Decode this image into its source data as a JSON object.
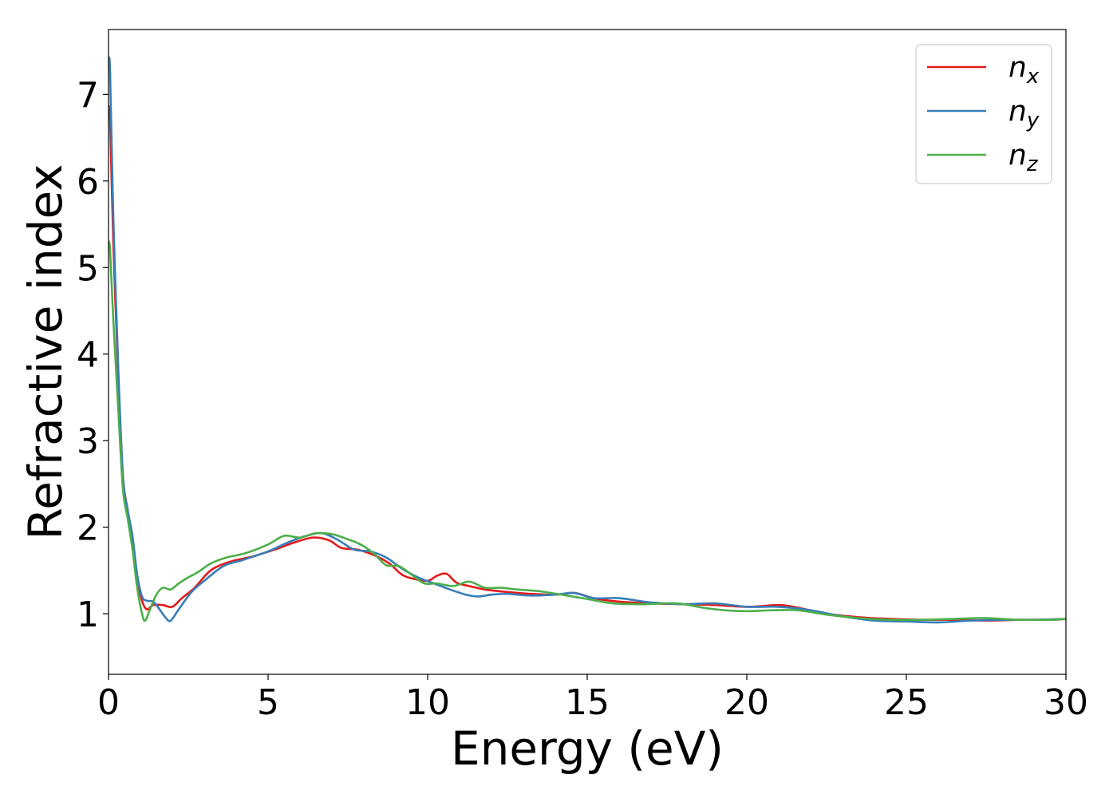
{
  "chart_data": {
    "type": "line",
    "xlabel": "Energy (eV)",
    "ylabel": "Refractive index",
    "xlim": [
      0,
      30
    ],
    "ylim": [
      0.3,
      7.75
    ],
    "xticks": [
      0,
      5,
      10,
      15,
      20,
      25,
      30
    ],
    "yticks": [
      1,
      2,
      3,
      4,
      5,
      6,
      7
    ],
    "grid": false,
    "legend_position": "top-right",
    "series": [
      {
        "name": "n_x",
        "label_main": "n",
        "label_sub": "x",
        "color": "#e41a1c",
        "x": [
          0,
          0.05,
          0.15,
          0.3,
          0.45,
          0.6,
          0.75,
          0.9,
          1.05,
          1.2,
          1.4,
          1.7,
          2.0,
          2.3,
          2.7,
          3.2,
          3.8,
          4.5,
          5.2,
          5.8,
          6.4,
          6.9,
          7.3,
          7.8,
          8.3,
          8.8,
          9.2,
          9.6,
          10.0,
          10.3,
          10.6,
          10.9,
          11.3,
          11.8,
          12.5,
          13.2,
          14.0,
          14.6,
          15.2,
          16.0,
          17.0,
          18.0,
          19.0,
          20.0,
          21.0,
          21.6,
          22.5,
          23.5,
          24.5,
          25.5,
          26.5,
          27.5,
          28.5,
          29.5,
          30
        ],
        "y": [
          6.85,
          6.7,
          5.3,
          3.8,
          2.6,
          2.2,
          1.85,
          1.4,
          1.15,
          1.05,
          1.1,
          1.1,
          1.08,
          1.18,
          1.3,
          1.5,
          1.6,
          1.66,
          1.74,
          1.82,
          1.88,
          1.85,
          1.76,
          1.74,
          1.68,
          1.58,
          1.45,
          1.4,
          1.38,
          1.44,
          1.46,
          1.36,
          1.32,
          1.28,
          1.25,
          1.23,
          1.22,
          1.24,
          1.18,
          1.14,
          1.12,
          1.11,
          1.1,
          1.08,
          1.1,
          1.07,
          1.0,
          0.96,
          0.94,
          0.93,
          0.93,
          0.92,
          0.93,
          0.93,
          0.94
        ]
      },
      {
        "name": "n_y",
        "label_main": "n",
        "label_sub": "y",
        "color": "#377eb8",
        "x": [
          0,
          0.05,
          0.15,
          0.3,
          0.45,
          0.6,
          0.75,
          0.9,
          1.05,
          1.2,
          1.4,
          1.6,
          1.8,
          1.95,
          2.2,
          2.6,
          3.0,
          3.6,
          4.2,
          5.0,
          5.6,
          6.2,
          6.7,
          7.2,
          7.7,
          8.2,
          8.7,
          9.2,
          9.7,
          10.2,
          10.7,
          11.2,
          11.6,
          12.0,
          12.5,
          13.2,
          14.0,
          14.6,
          15.2,
          16.0,
          17.0,
          18.0,
          19.0,
          20.0,
          21.0,
          22.0,
          23.0,
          24.0,
          25.0,
          26.0,
          27.0,
          28.0,
          29.0,
          30
        ],
        "y": [
          7.4,
          7.25,
          5.6,
          3.9,
          2.6,
          2.2,
          1.9,
          1.45,
          1.2,
          1.15,
          1.14,
          1.05,
          0.95,
          0.92,
          1.05,
          1.25,
          1.38,
          1.55,
          1.62,
          1.72,
          1.82,
          1.9,
          1.93,
          1.85,
          1.74,
          1.72,
          1.65,
          1.52,
          1.42,
          1.35,
          1.28,
          1.22,
          1.2,
          1.22,
          1.23,
          1.21,
          1.22,
          1.24,
          1.18,
          1.18,
          1.13,
          1.11,
          1.12,
          1.08,
          1.08,
          1.04,
          0.97,
          0.92,
          0.91,
          0.9,
          0.92,
          0.93,
          0.93,
          0.94
        ]
      },
      {
        "name": "n_z",
        "label_main": "n",
        "label_sub": "z",
        "color": "#4daf4a",
        "x": [
          0,
          0.05,
          0.15,
          0.3,
          0.45,
          0.6,
          0.75,
          0.9,
          1.05,
          1.15,
          1.3,
          1.5,
          1.7,
          1.95,
          2.2,
          2.5,
          2.8,
          3.2,
          3.7,
          4.3,
          5.0,
          5.5,
          6.0,
          6.5,
          7.0,
          7.5,
          7.9,
          8.3,
          8.7,
          9.1,
          9.5,
          9.9,
          10.3,
          10.8,
          11.3,
          11.8,
          12.3,
          12.8,
          13.5,
          14.2,
          15.0,
          15.8,
          16.8,
          17.8,
          18.8,
          19.8,
          20.8,
          21.6,
          22.5,
          23.5,
          24.5,
          25.5,
          26.5,
          27.5,
          28.5,
          29.5,
          30
        ],
        "y": [
          5.3,
          5.2,
          4.4,
          3.4,
          2.45,
          2.1,
          1.75,
          1.3,
          1.0,
          0.92,
          1.05,
          1.22,
          1.3,
          1.28,
          1.35,
          1.42,
          1.48,
          1.58,
          1.65,
          1.7,
          1.8,
          1.9,
          1.88,
          1.93,
          1.92,
          1.86,
          1.8,
          1.7,
          1.56,
          1.55,
          1.45,
          1.35,
          1.35,
          1.32,
          1.37,
          1.3,
          1.3,
          1.28,
          1.26,
          1.22,
          1.17,
          1.12,
          1.11,
          1.12,
          1.06,
          1.03,
          1.04,
          1.04,
          0.99,
          0.95,
          0.93,
          0.93,
          0.94,
          0.95,
          0.93,
          0.93,
          0.94
        ]
      }
    ]
  }
}
